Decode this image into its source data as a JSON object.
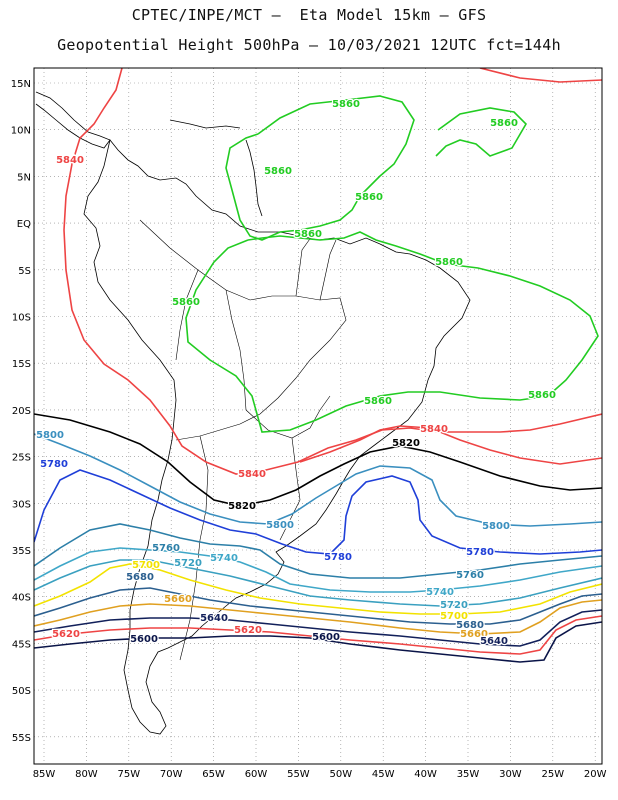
{
  "title_line1": "CPTEC/INPE/MCT –  Eta Model 15km – GFS",
  "title_line2": "Geopotential Height 500hPa – 10/03/2021 12UTC fct=144h",
  "lat_labels": [
    "15N",
    "10N",
    "5N",
    "EQ",
    "5S",
    "10S",
    "15S",
    "20S",
    "25S",
    "30S",
    "35S",
    "40S",
    "45S",
    "50S",
    "55S"
  ],
  "lon_labels": [
    "85W",
    "80W",
    "75W",
    "70W",
    "65W",
    "60W",
    "55W",
    "50W",
    "45W",
    "40W",
    "35W",
    "30W",
    "25W",
    "20W"
  ],
  "colors": {
    "c5860": "#22cc22",
    "c5840": "#ee4444",
    "c5820": "#000000",
    "c5800": "#3a8fbf",
    "c5780": "#1f3fd8",
    "c5760": "#2c7fa8",
    "c5740": "#3fa7c8",
    "c5720": "#3aa0c0",
    "c5700": "#f2e200",
    "c5680": "#2b5f8f",
    "c5660": "#e0a020",
    "c5640": "#12205a",
    "c5620": "#ee4444",
    "c5600": "#0a1448",
    "coast": "#000000",
    "grid": "#888888"
  },
  "contour_labels": [
    {
      "text": "5860",
      "color_key": "c5860"
    },
    {
      "text": "5860",
      "color_key": "c5860"
    },
    {
      "text": "5860",
      "color_key": "c5860"
    },
    {
      "text": "5860",
      "color_key": "c5860"
    },
    {
      "text": "5860",
      "color_key": "c5860"
    },
    {
      "text": "5860",
      "color_key": "c5860"
    },
    {
      "text": "5860",
      "color_key": "c5860"
    },
    {
      "text": "5860",
      "color_key": "c5860"
    },
    {
      "text": "5860",
      "color_key": "c5860"
    },
    {
      "text": "5840",
      "color_key": "c5840"
    },
    {
      "text": "5840",
      "color_key": "c5840"
    },
    {
      "text": "5840",
      "color_key": "c5840"
    },
    {
      "text": "5820",
      "color_key": "c5820"
    },
    {
      "text": "5820",
      "color_key": "c5820"
    },
    {
      "text": "5800",
      "color_key": "c5800"
    },
    {
      "text": "5800",
      "color_key": "c5800"
    },
    {
      "text": "5800",
      "color_key": "c5800"
    },
    {
      "text": "5780",
      "color_key": "c5780"
    },
    {
      "text": "5780",
      "color_key": "c5780"
    },
    {
      "text": "5780",
      "color_key": "c5780"
    },
    {
      "text": "5760",
      "color_key": "c5760"
    },
    {
      "text": "5760",
      "color_key": "c5760"
    },
    {
      "text": "5740",
      "color_key": "c5740"
    },
    {
      "text": "5740",
      "color_key": "c5740"
    },
    {
      "text": "5720",
      "color_key": "c5720"
    },
    {
      "text": "5720",
      "color_key": "c5720"
    },
    {
      "text": "5700",
      "color_key": "c5700"
    },
    {
      "text": "5700",
      "color_key": "c5700"
    },
    {
      "text": "5680",
      "color_key": "c5680"
    },
    {
      "text": "5680",
      "color_key": "c5680"
    },
    {
      "text": "5660",
      "color_key": "c5660"
    },
    {
      "text": "5660",
      "color_key": "c5660"
    },
    {
      "text": "5640",
      "color_key": "c5640"
    },
    {
      "text": "5640",
      "color_key": "c5640"
    },
    {
      "text": "5620",
      "color_key": "c5620"
    },
    {
      "text": "5620",
      "color_key": "c5620"
    },
    {
      "text": "5600",
      "color_key": "c5600"
    },
    {
      "text": "5600",
      "color_key": "c5600"
    }
  ]
}
